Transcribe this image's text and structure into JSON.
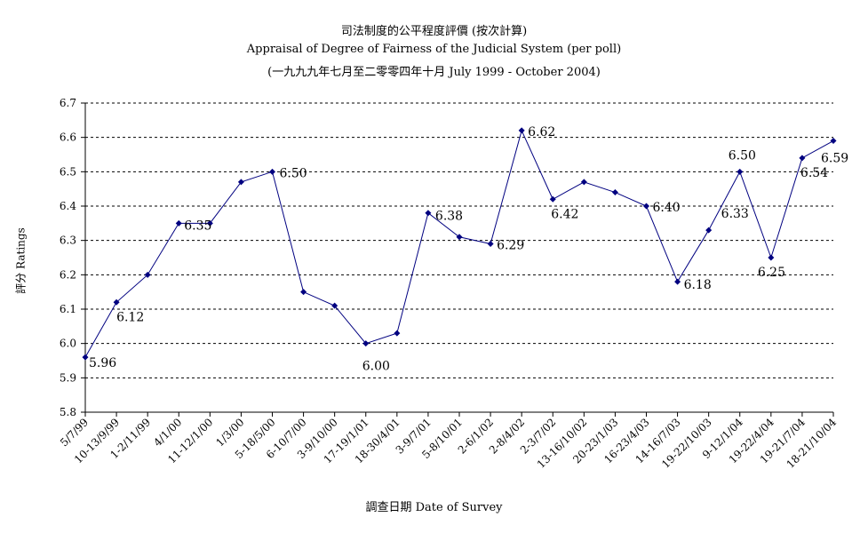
{
  "chart_data": {
    "type": "line",
    "title": "司法制度的公平程度評價 (按次計算)",
    "subtitle": "Appraisal of Degree of Fairness of the Judicial System (per poll)",
    "subtitle2": "(一九九九年七月至二零零四年十月 July 1999 - October 2004)",
    "xlabel": "調查日期 Date of Survey",
    "ylabel": "評分 Ratings",
    "ylim": [
      5.8,
      6.7
    ],
    "yticks": [
      "5.8",
      "5.9",
      "6.0",
      "6.1",
      "6.2",
      "6.3",
      "6.4",
      "6.5",
      "6.6",
      "6.7"
    ],
    "grid": "horizontal dashed",
    "categories": [
      "5/7/99",
      "10-13/9/99",
      "1-2/11/99",
      "4/1/00",
      "11-12/1/00",
      "1/3/00",
      "5-18/5/00",
      "6-10/7/00",
      "3-9/10/00",
      "17-19/1/01",
      "18-30/4/01",
      "3-9/7/01",
      "5-8/10/01",
      "2-6/1/02",
      "2-8/4/02",
      "2-3/7/02",
      "13-16/10/02",
      "20-23/1/03",
      "16-23/4/03",
      "14-16/7/03",
      "19-22/10/03",
      "9-12/1/04",
      "19-22/4/04",
      "19-21/7/04",
      "18-21/10/04"
    ],
    "values": [
      5.96,
      6.12,
      6.2,
      6.35,
      6.35,
      6.47,
      6.5,
      6.15,
      6.11,
      6.0,
      6.03,
      6.38,
      6.31,
      6.29,
      6.62,
      6.42,
      6.47,
      6.44,
      6.4,
      6.18,
      6.33,
      6.5,
      6.25,
      6.54,
      6.59
    ],
    "data_labels": [
      {
        "index": 0,
        "text": "5.96"
      },
      {
        "index": 1,
        "text": "6.12"
      },
      {
        "index": 3,
        "text": "6.35"
      },
      {
        "index": 6,
        "text": "6.50"
      },
      {
        "index": 9,
        "text": "6.00"
      },
      {
        "index": 11,
        "text": "6.38"
      },
      {
        "index": 13,
        "text": "6.29"
      },
      {
        "index": 14,
        "text": "6.62"
      },
      {
        "index": 15,
        "text": "6.42"
      },
      {
        "index": 18,
        "text": "6.40"
      },
      {
        "index": 19,
        "text": "6.18"
      },
      {
        "index": 20,
        "text": "6.33"
      },
      {
        "index": 21,
        "text": "6.50"
      },
      {
        "index": 22,
        "text": "6.25"
      },
      {
        "index": 23,
        "text": "6.54"
      },
      {
        "index": 24,
        "text": "6.59"
      }
    ],
    "series_color": "#000080"
  }
}
